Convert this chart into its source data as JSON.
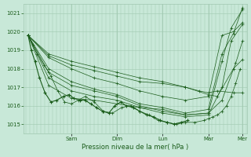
{
  "title": "",
  "xlabel": "Pression niveau de la mer( hPa )",
  "bg_color": "#c8e8d8",
  "grid_color": "#a0c8b0",
  "line_color": "#1a5c1a",
  "ylim": [
    1014.5,
    1021.5
  ],
  "xlim": [
    -0.05,
    4.85
  ],
  "day_labels": [
    "Sam",
    "Dim",
    "Lun",
    "Mar",
    "Mer"
  ],
  "day_positions": [
    1.0,
    2.0,
    3.0,
    4.0,
    4.75
  ],
  "yticks": [
    1015,
    1016,
    1017,
    1018,
    1019,
    1020,
    1021
  ],
  "series": [
    {
      "x": [
        0.05,
        0.15,
        0.25,
        0.4,
        0.55,
        0.7,
        0.85,
        1.0,
        1.15,
        1.3,
        1.5,
        1.7,
        1.9,
        2.1,
        2.3,
        2.5,
        2.7,
        2.9,
        3.1,
        3.3,
        3.5,
        3.7,
        3.9,
        4.0,
        4.1,
        4.2,
        4.3,
        4.4,
        4.5,
        4.6,
        4.7
      ],
      "y": [
        1019.8,
        1019.3,
        1018.8,
        1018.2,
        1017.6,
        1016.8,
        1016.2,
        1016.1,
        1016.3,
        1016.5,
        1016.2,
        1015.7,
        1015.6,
        1015.9,
        1016.0,
        1015.7,
        1015.5,
        1015.2,
        1015.1,
        1015.0,
        1015.1,
        1015.1,
        1015.2,
        1015.3,
        1015.4,
        1015.5,
        1015.7,
        1016.0,
        1016.5,
        1017.2,
        1018.0
      ]
    },
    {
      "x": [
        0.05,
        0.5,
        1.0,
        1.5,
        2.0,
        2.5,
        3.0,
        3.5,
        4.0,
        4.3,
        4.6,
        4.75
      ],
      "y": [
        1019.8,
        1017.1,
        1016.4,
        1016.3,
        1016.1,
        1015.9,
        1015.8,
        1015.5,
        1015.6,
        1016.3,
        1018.3,
        1019.5
      ]
    },
    {
      "x": [
        0.05,
        0.5,
        1.0,
        1.5,
        2.0,
        2.5,
        3.0,
        3.5,
        4.0,
        4.3,
        4.5,
        4.75
      ],
      "y": [
        1019.8,
        1017.5,
        1016.8,
        1016.5,
        1016.3,
        1015.9,
        1015.6,
        1015.4,
        1015.5,
        1017.0,
        1019.5,
        1020.4
      ]
    },
    {
      "x": [
        0.05,
        0.5,
        1.0,
        1.5,
        2.0,
        2.5,
        3.0,
        3.5,
        4.0,
        4.3,
        4.5,
        4.75
      ],
      "y": [
        1019.8,
        1017.8,
        1017.1,
        1016.8,
        1016.5,
        1016.0,
        1015.7,
        1015.5,
        1015.6,
        1018.4,
        1020.2,
        1021.2
      ]
    },
    {
      "x": [
        0.05,
        0.5,
        1.0,
        1.5,
        2.0,
        2.5,
        3.0,
        3.5,
        4.0,
        4.3,
        4.55,
        4.75
      ],
      "y": [
        1019.8,
        1018.0,
        1017.3,
        1016.9,
        1016.6,
        1016.1,
        1015.9,
        1015.6,
        1015.8,
        1018.8,
        1019.9,
        1021.3
      ]
    },
    {
      "x": [
        0.05,
        0.5,
        1.0,
        1.5,
        2.0,
        2.5,
        3.0,
        3.5,
        4.0,
        4.3,
        4.55,
        4.75
      ],
      "y": [
        1019.8,
        1018.6,
        1018.0,
        1017.5,
        1017.2,
        1016.8,
        1016.5,
        1016.3,
        1016.5,
        1019.8,
        1020.0,
        1020.5
      ]
    },
    {
      "x": [
        0.05,
        0.5,
        1.0,
        1.5,
        2.0,
        2.5,
        3.0,
        3.5,
        4.0,
        4.2,
        4.55,
        4.75
      ],
      "y": [
        1019.8,
        1018.7,
        1018.2,
        1017.9,
        1017.6,
        1017.3,
        1017.2,
        1017.0,
        1016.6,
        1016.5,
        1018.0,
        1018.5
      ]
    },
    {
      "x": [
        0.05,
        0.5,
        1.0,
        1.5,
        2.0,
        2.5,
        3.0,
        3.5,
        3.8,
        4.0,
        4.2,
        4.55,
        4.75
      ],
      "y": [
        1019.8,
        1018.8,
        1018.4,
        1018.1,
        1017.8,
        1017.5,
        1017.3,
        1017.0,
        1016.8,
        1016.7,
        1016.8,
        1016.7,
        1016.7
      ]
    }
  ],
  "observed_x": [
    0.05,
    0.12,
    0.2,
    0.3,
    0.42,
    0.55,
    0.68,
    0.82,
    0.95,
    1.05,
    1.18,
    1.3,
    1.42,
    1.55,
    1.68,
    1.82,
    1.95,
    2.08,
    2.2,
    2.35,
    2.5,
    2.65,
    2.8,
    2.95,
    3.1,
    3.25,
    3.4,
    3.55
  ],
  "observed_y": [
    1019.8,
    1019.0,
    1018.4,
    1017.5,
    1016.7,
    1016.2,
    1016.3,
    1016.5,
    1016.6,
    1016.4,
    1016.3,
    1016.3,
    1016.1,
    1015.9,
    1015.7,
    1015.6,
    1016.0,
    1016.2,
    1016.0,
    1015.9,
    1015.7,
    1015.5,
    1015.4,
    1015.2,
    1015.1,
    1015.0,
    1015.1,
    1015.2
  ]
}
